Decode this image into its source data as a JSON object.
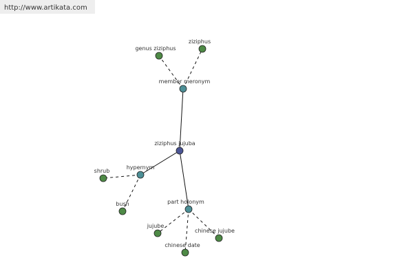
{
  "header": {
    "url": "http://www.artikata.com"
  },
  "nodes": [
    {
      "label": "ziziphus jujuba"
    },
    {
      "label": "member meronym"
    },
    {
      "label": "genus ziziphus"
    },
    {
      "label": "ziziphus"
    },
    {
      "label": "hypernym"
    },
    {
      "label": "shrub"
    },
    {
      "label": "bush"
    },
    {
      "label": "part holonym"
    },
    {
      "label": "jujube"
    },
    {
      "label": "chinese date"
    },
    {
      "label": "chinese jujube"
    }
  ]
}
